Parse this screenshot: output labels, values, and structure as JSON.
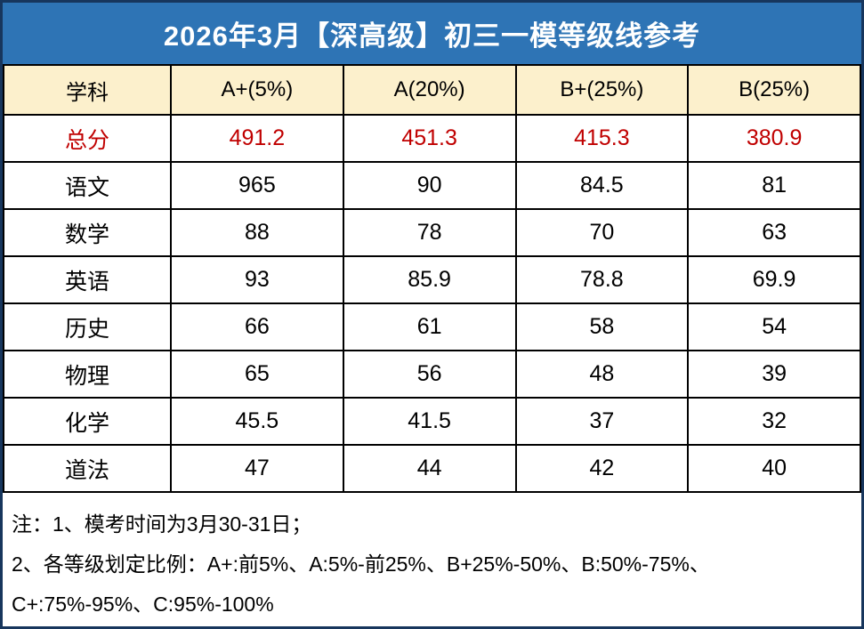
{
  "title": "2026年3月【深高级】初三一模等级线参考",
  "table": {
    "columns": [
      "学科",
      "A+(5%)",
      "A(20%)",
      "B+(25%)",
      "B(25%)"
    ],
    "rows": [
      {
        "subject": "总分",
        "values": [
          "491.2",
          "451.3",
          "415.3",
          "380.9"
        ],
        "highlight": true
      },
      {
        "subject": "语文",
        "values": [
          "965",
          "90",
          "84.5",
          "81"
        ],
        "highlight": false
      },
      {
        "subject": "数学",
        "values": [
          "88",
          "78",
          "70",
          "63"
        ],
        "highlight": false
      },
      {
        "subject": "英语",
        "values": [
          "93",
          "85.9",
          "78.8",
          "69.9"
        ],
        "highlight": false
      },
      {
        "subject": "历史",
        "values": [
          "66",
          "61",
          "58",
          "54"
        ],
        "highlight": false
      },
      {
        "subject": "物理",
        "values": [
          "65",
          "56",
          "48",
          "39"
        ],
        "highlight": false
      },
      {
        "subject": "化学",
        "values": [
          "45.5",
          "41.5",
          "37",
          "32"
        ],
        "highlight": false
      },
      {
        "subject": "道法",
        "values": [
          "47",
          "44",
          "42",
          "40"
        ],
        "highlight": false
      }
    ]
  },
  "notes": {
    "line1": "注：1、模考时间为3月30-31日；",
    "line2": "2、各等级划定比例：A+:前5%、A:5%-前25%、B+25%-50%、B:50%-75%、",
    "line3": "C+:75%-95%、C:95%-100%"
  },
  "colors": {
    "title_bar_blue": "#2E74B5",
    "header_cream": "#FCF0CC",
    "highlight_red": "#C00000",
    "outer_border_navy": "#17365D",
    "grid_black": "#000000"
  }
}
